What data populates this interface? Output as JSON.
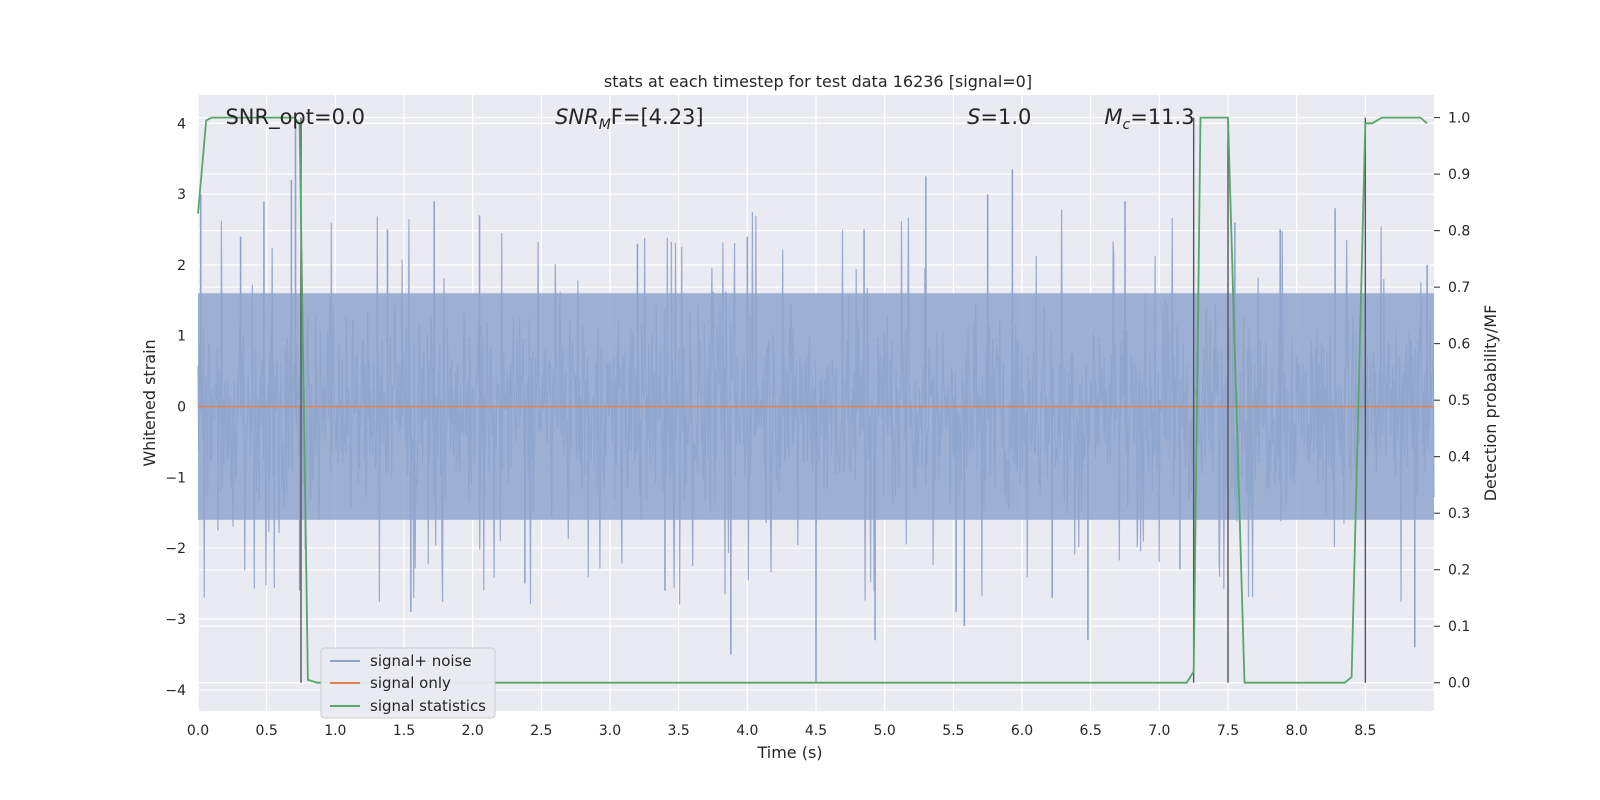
{
  "chart_data": {
    "type": "line",
    "title": "stats at each timestep for test data 16236 [signal=0]",
    "xlabel": "Time (s)",
    "ylabel": "Whitened strain",
    "ylabel_right": "Detection probability/MF",
    "xlim": [
      0.0,
      9.0
    ],
    "ylim": [
      -4.3,
      4.4
    ],
    "ylim_right": [
      -0.05,
      1.04
    ],
    "x_ticks": [
      "0.0",
      "0.5",
      "1.0",
      "1.5",
      "2.0",
      "2.5",
      "3.0",
      "3.5",
      "4.0",
      "4.5",
      "5.0",
      "5.5",
      "6.0",
      "6.5",
      "7.0",
      "7.5",
      "8.0",
      "8.5"
    ],
    "x_tick_values": [
      0.0,
      0.5,
      1.0,
      1.5,
      2.0,
      2.5,
      3.0,
      3.5,
      4.0,
      4.5,
      5.0,
      5.5,
      6.0,
      6.5,
      7.0,
      7.5,
      8.0,
      8.5
    ],
    "y_ticks": [
      "−4",
      "−3",
      "−2",
      "−1",
      "0",
      "1",
      "2",
      "3",
      "4"
    ],
    "y_tick_values": [
      -4,
      -3,
      -2,
      -1,
      0,
      1,
      2,
      3,
      4
    ],
    "y_ticks_right": [
      "0.0",
      "0.1",
      "0.2",
      "0.3",
      "0.4",
      "0.5",
      "0.6",
      "0.7",
      "0.8",
      "0.9",
      "1.0"
    ],
    "y_tick_values_right": [
      0.0,
      0.1,
      0.2,
      0.3,
      0.4,
      0.5,
      0.6,
      0.7,
      0.8,
      0.9,
      1.0
    ],
    "grid": true,
    "legend_placement": "lower-left",
    "annotations": [
      {
        "text": "SNR_opt=0.0",
        "x": 0.2,
        "y": 4.1,
        "italic": false
      },
      {
        "text": "SNR",
        "sub": "M",
        "tail": "F=[4.23]",
        "x": 2.6,
        "y": 4.1,
        "italic": true
      },
      {
        "text": "S",
        "tail": "=1.0",
        "x": 5.6,
        "y": 4.1,
        "italic": true
      },
      {
        "text": "M",
        "sub": "c",
        "tail": "=11.3",
        "x": 6.6,
        "y": 4.1,
        "italic": true
      }
    ],
    "vertical_lines_x": [
      0.75,
      7.25,
      7.5,
      8.5
    ],
    "series": [
      {
        "name": "signal+ noise",
        "color": "#8fa4cc",
        "axis": "left",
        "description_range": "dense noise roughly within -2 to 2 with spikes to about ±3.9",
        "dense_band": [
          -1.6,
          1.6
        ],
        "spikes": [
          {
            "x": 0.02,
            "y": 3.0
          },
          {
            "x": 0.31,
            "y": 2.4
          },
          {
            "x": 0.48,
            "y": 2.9
          },
          {
            "x": 0.68,
            "y": 3.2
          },
          {
            "x": 0.71,
            "y": 3.95
          },
          {
            "x": 0.74,
            "y": -2.6
          },
          {
            "x": 1.38,
            "y": 2.5
          },
          {
            "x": 1.72,
            "y": 2.9
          },
          {
            "x": 1.55,
            "y": -2.9
          },
          {
            "x": 2.05,
            "y": 2.7
          },
          {
            "x": 2.38,
            "y": -2.5
          },
          {
            "x": 3.2,
            "y": 2.3
          },
          {
            "x": 3.4,
            "y": -2.6
          },
          {
            "x": 3.88,
            "y": -3.5
          },
          {
            "x": 4.0,
            "y": 2.4
          },
          {
            "x": 4.5,
            "y": -3.9
          },
          {
            "x": 4.85,
            "y": 2.5
          },
          {
            "x": 4.93,
            "y": -3.3
          },
          {
            "x": 5.3,
            "y": 3.25
          },
          {
            "x": 5.52,
            "y": -2.9
          },
          {
            "x": 5.58,
            "y": -3.1
          },
          {
            "x": 5.75,
            "y": 3.0
          },
          {
            "x": 5.93,
            "y": 3.35
          },
          {
            "x": 6.22,
            "y": -2.7
          },
          {
            "x": 6.48,
            "y": -3.3
          },
          {
            "x": 6.75,
            "y": 2.9
          },
          {
            "x": 7.15,
            "y": -2.3
          },
          {
            "x": 7.55,
            "y": 2.6
          },
          {
            "x": 7.88,
            "y": 2.5
          },
          {
            "x": 8.28,
            "y": 2.8
          },
          {
            "x": 8.86,
            "y": -3.4
          },
          {
            "x": 8.95,
            "y": 2.0
          }
        ]
      },
      {
        "name": "signal only",
        "color": "#dd8452",
        "axis": "left",
        "x": [
          0.0,
          9.0
        ],
        "y": [
          0.0,
          0.0
        ]
      },
      {
        "name": "signal statistics",
        "color": "#55a868",
        "axis": "right",
        "x": [
          0.0,
          0.06,
          0.1,
          0.7,
          0.74,
          0.8,
          0.87,
          1.0,
          7.2,
          7.25,
          7.3,
          7.5,
          7.62,
          7.7,
          8.35,
          8.4,
          8.45,
          8.5,
          8.55,
          8.62,
          8.7,
          8.9,
          8.95
        ],
        "y": [
          0.83,
          0.995,
          1.0,
          1.0,
          0.99,
          0.005,
          0.0,
          0.0,
          0.0,
          0.02,
          1.0,
          1.0,
          0.0,
          0.0,
          0.0,
          0.01,
          0.5,
          0.99,
          0.99,
          1.0,
          1.0,
          1.0,
          0.99
        ]
      }
    ]
  }
}
